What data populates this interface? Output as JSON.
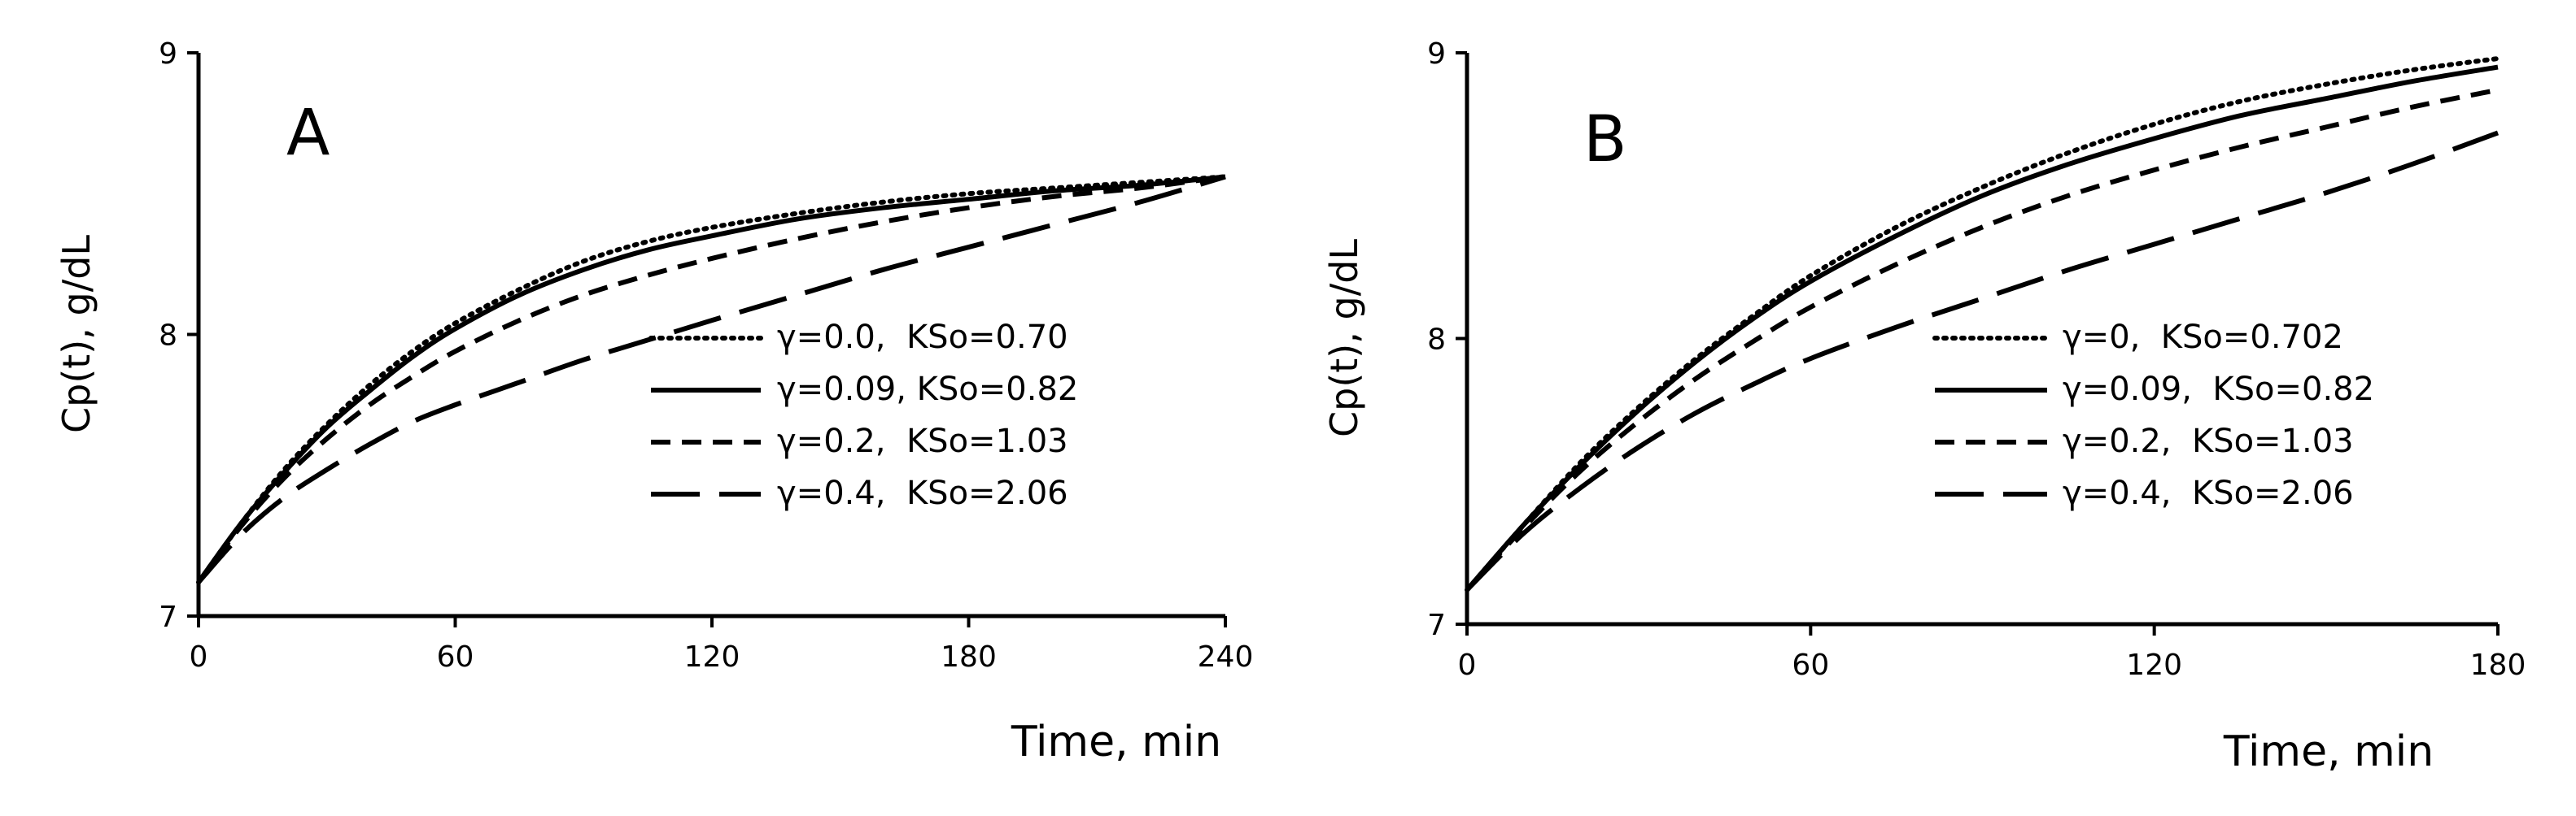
{
  "chart_data": [
    {
      "type": "line",
      "panel_label": "A",
      "xlabel": "Time, min",
      "ylabel": "Cp(t), g/dL",
      "xlim": [
        0,
        240
      ],
      "ylim": [
        7,
        9
      ],
      "xticks": [
        "0",
        "60",
        "120",
        "180",
        "240"
      ],
      "yticks": [
        "7",
        "8",
        "9"
      ],
      "legend_position": "center-right",
      "series": [
        {
          "name": "γ=0.0,  KSo=0.70",
          "style": "dotted",
          "x": [
            0,
            10,
            20,
            30,
            40,
            50,
            60,
            75,
            90,
            105,
            120,
            140,
            160,
            180,
            200,
            220,
            240
          ],
          "y": [
            7.12,
            7.33,
            7.52,
            7.68,
            7.82,
            7.94,
            8.04,
            8.16,
            8.26,
            8.33,
            8.38,
            8.43,
            8.47,
            8.5,
            8.52,
            8.54,
            8.56
          ]
        },
        {
          "name": "γ=0.09, KSo=0.82",
          "style": "solid",
          "x": [
            0,
            10,
            20,
            30,
            40,
            50,
            60,
            75,
            90,
            105,
            120,
            140,
            160,
            180,
            200,
            220,
            240
          ],
          "y": [
            7.12,
            7.33,
            7.51,
            7.67,
            7.8,
            7.92,
            8.02,
            8.14,
            8.23,
            8.3,
            8.35,
            8.41,
            8.45,
            8.48,
            8.51,
            8.53,
            8.56
          ]
        },
        {
          "name": "γ=0.2,  KSo=1.03",
          "style": "dashed",
          "x": [
            0,
            10,
            20,
            30,
            40,
            50,
            60,
            75,
            90,
            105,
            120,
            140,
            160,
            180,
            200,
            220,
            240
          ],
          "y": [
            7.12,
            7.32,
            7.49,
            7.63,
            7.75,
            7.85,
            7.94,
            8.05,
            8.14,
            8.21,
            8.27,
            8.34,
            8.4,
            8.45,
            8.49,
            8.52,
            8.56
          ]
        },
        {
          "name": "γ=0.4,  KSo=2.06",
          "style": "longdash",
          "x": [
            0,
            10,
            20,
            30,
            40,
            50,
            60,
            75,
            90,
            105,
            120,
            140,
            160,
            180,
            200,
            220,
            240
          ],
          "y": [
            7.12,
            7.29,
            7.42,
            7.52,
            7.61,
            7.69,
            7.75,
            7.83,
            7.91,
            7.98,
            8.05,
            8.14,
            8.23,
            8.31,
            8.39,
            8.47,
            8.56
          ]
        }
      ]
    },
    {
      "type": "line",
      "panel_label": "B",
      "xlabel": "Time, min",
      "ylabel": "Cp(t), g/dL",
      "xlim": [
        0,
        180
      ],
      "ylim": [
        7,
        9
      ],
      "xticks": [
        "0",
        "60",
        "120",
        "180"
      ],
      "yticks": [
        "7",
        "8",
        "9"
      ],
      "legend_position": "center-right",
      "series": [
        {
          "name": "γ=0,  KSo=0.702",
          "style": "dotted",
          "x": [
            0,
            10,
            20,
            30,
            40,
            50,
            60,
            75,
            90,
            105,
            120,
            135,
            150,
            165,
            180
          ],
          "y": [
            7.12,
            7.35,
            7.57,
            7.76,
            7.93,
            8.08,
            8.22,
            8.39,
            8.53,
            8.65,
            8.75,
            8.83,
            8.89,
            8.94,
            8.98
          ]
        },
        {
          "name": "γ=0.09,  KSo=0.82",
          "style": "solid",
          "x": [
            0,
            10,
            20,
            30,
            40,
            50,
            60,
            75,
            90,
            105,
            120,
            135,
            150,
            165,
            180
          ],
          "y": [
            7.12,
            7.35,
            7.56,
            7.75,
            7.92,
            8.07,
            8.2,
            8.36,
            8.5,
            8.61,
            8.7,
            8.78,
            8.84,
            8.9,
            8.95
          ]
        },
        {
          "name": "γ=0.2,  KSo=1.03",
          "style": "dashed",
          "x": [
            0,
            10,
            20,
            30,
            40,
            50,
            60,
            75,
            90,
            105,
            120,
            135,
            150,
            165,
            180
          ],
          "y": [
            7.12,
            7.34,
            7.54,
            7.71,
            7.86,
            7.99,
            8.11,
            8.26,
            8.39,
            8.5,
            8.59,
            8.67,
            8.74,
            8.81,
            8.87
          ]
        },
        {
          "name": "γ=0.4,  KSo=2.06",
          "style": "longdash",
          "x": [
            0,
            10,
            20,
            30,
            40,
            50,
            60,
            75,
            90,
            105,
            120,
            135,
            150,
            165,
            180
          ],
          "y": [
            7.12,
            7.32,
            7.48,
            7.62,
            7.74,
            7.84,
            7.93,
            8.04,
            8.14,
            8.24,
            8.33,
            8.42,
            8.51,
            8.61,
            8.72
          ]
        }
      ]
    }
  ]
}
